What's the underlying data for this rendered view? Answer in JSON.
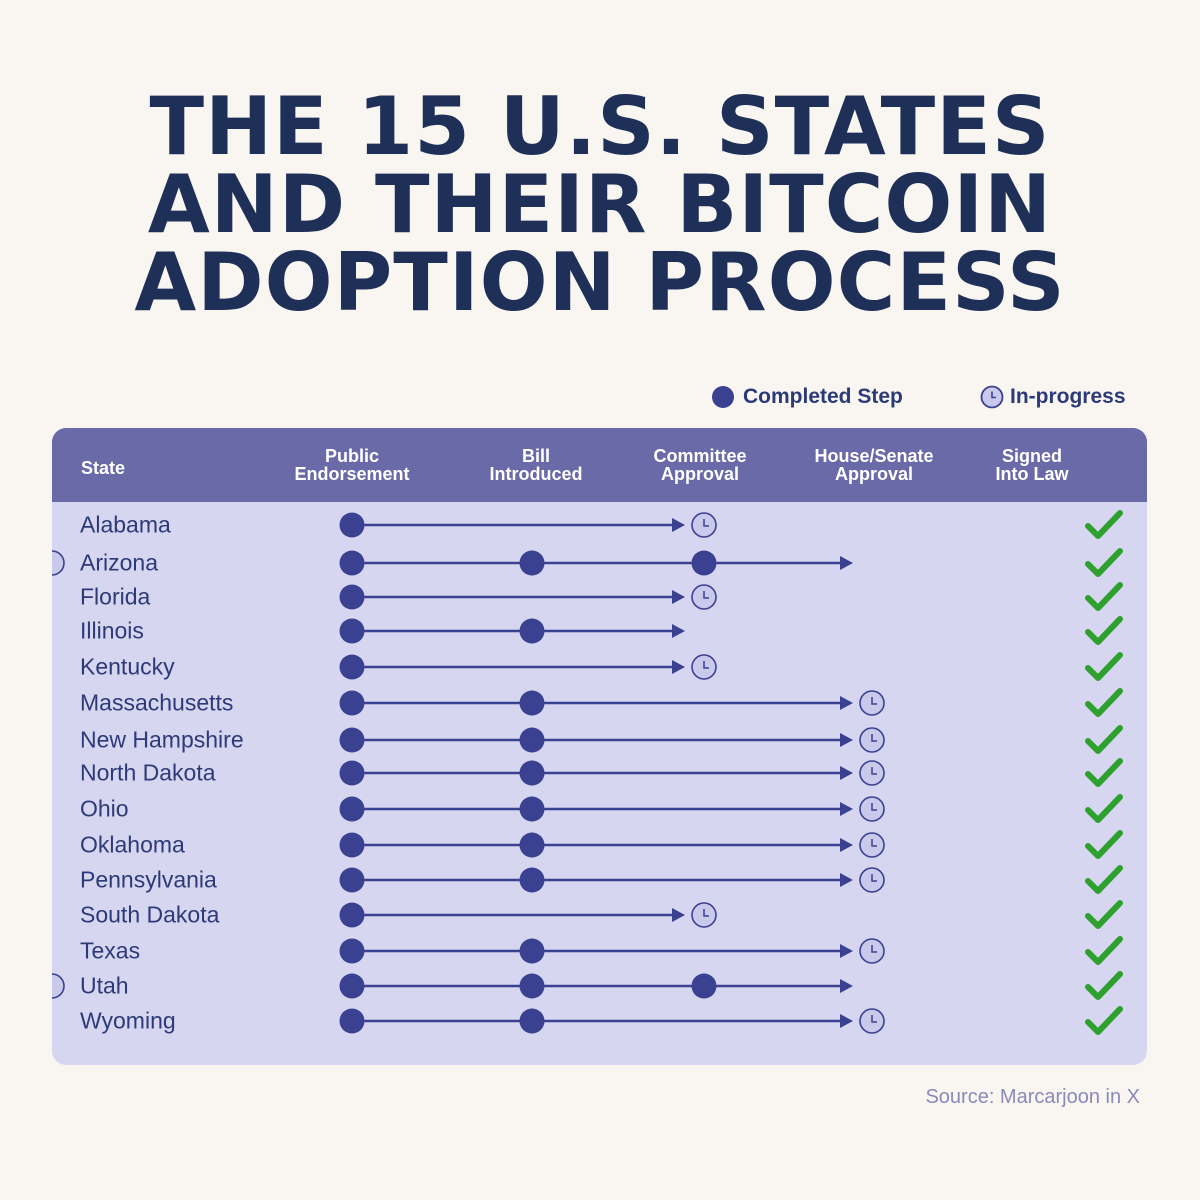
{
  "title_lines": [
    "THE 15 U.S. STATES",
    "AND THEIR BITCOIN",
    "ADOPTION PROCESS"
  ],
  "legend": {
    "completed": "Completed Step",
    "in_progress": "In-progress"
  },
  "colors": {
    "completed": "#3a4190",
    "in_progress_fill": "#c9c9ec",
    "check": "#2ea02e",
    "header": "#6a6aa8",
    "panel": "#d6d6f0"
  },
  "source": "Source: Marcarjoon in X",
  "chart_data": {
    "type": "table",
    "columns": [
      "State",
      "Public\nEndorsement",
      "Bill\nIntroduced",
      "Committee\nApproval",
      "House/Senate\nApproval",
      "Signed\nInto Law"
    ],
    "rows": [
      {
        "state": "Alabama",
        "completed_steps": 1,
        "in_progress_step": 2,
        "signed_mark": "check-icon"
      },
      {
        "state": "Arizona",
        "completed_steps": 3,
        "in_progress_step": 4,
        "signed_mark": "check-icon"
      },
      {
        "state": "Florida",
        "completed_steps": 1,
        "in_progress_step": 2,
        "signed_mark": "check-icon"
      },
      {
        "state": "Illinois",
        "completed_steps": 2,
        "in_progress_step": null,
        "signed_mark": "check-icon"
      },
      {
        "state": "Kentucky",
        "completed_steps": 1,
        "in_progress_step": 2,
        "signed_mark": "check-icon"
      },
      {
        "state": "Massachusetts",
        "completed_steps": 2,
        "in_progress_step": 3,
        "signed_mark": "check-icon"
      },
      {
        "state": "New Hampshire",
        "completed_steps": 2,
        "in_progress_step": 3,
        "signed_mark": "check-icon"
      },
      {
        "state": "North Dakota",
        "completed_steps": 2,
        "in_progress_step": 3,
        "signed_mark": "check-icon"
      },
      {
        "state": "Ohio",
        "completed_steps": 2,
        "in_progress_step": 3,
        "signed_mark": "check-icon"
      },
      {
        "state": "Oklahoma",
        "completed_steps": 2,
        "in_progress_step": 3,
        "signed_mark": "check-icon"
      },
      {
        "state": "Pennsylvania",
        "completed_steps": 2,
        "in_progress_step": 3,
        "signed_mark": "check-icon"
      },
      {
        "state": "South Dakota",
        "completed_steps": 1,
        "in_progress_step": 2,
        "signed_mark": "check-icon"
      },
      {
        "state": "Texas",
        "completed_steps": 2,
        "in_progress_step": 3,
        "signed_mark": "check-icon"
      },
      {
        "state": "Utah",
        "completed_steps": 3,
        "in_progress_step": 4,
        "signed_mark": "check-icon"
      },
      {
        "state": "Wyoming",
        "completed_steps": 2,
        "in_progress_step": 3,
        "signed_mark": "check-icon"
      }
    ]
  }
}
